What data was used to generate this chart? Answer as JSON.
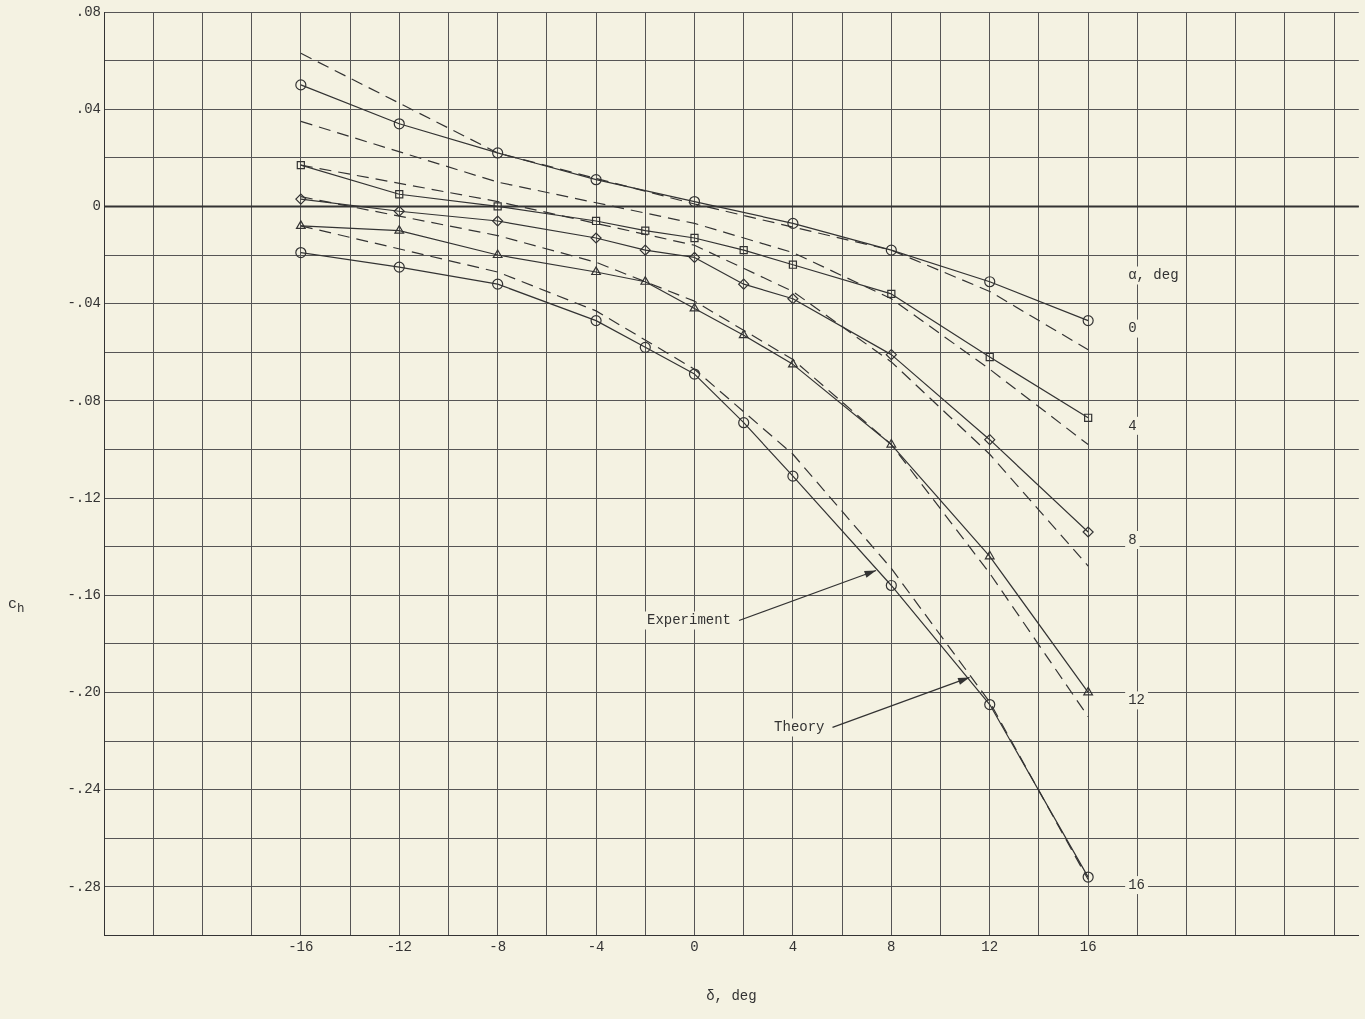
{
  "chart_data": {
    "type": "line",
    "xlabel": "δ, deg",
    "ylabel": "c$_{h}$",
    "legend_title": "α, deg",
    "x": [
      -16,
      -12,
      -8,
      -4,
      -2,
      0,
      2,
      4,
      8,
      12,
      16
    ],
    "series": [
      {
        "name": "0",
        "color": "#333333",
        "marker": "circle",
        "line_style": "solid",
        "x": [
          -16,
          -12,
          -8,
          -4,
          0,
          4,
          8,
          12,
          16
        ],
        "values": [
          0.05,
          0.034,
          0.022,
          0.011,
          0.002,
          -0.007,
          -0.018,
          -0.031,
          -0.047
        ]
      },
      {
        "name": "4",
        "color": "#333333",
        "marker": "square",
        "line_style": "solid",
        "values": [
          0.017,
          0.005,
          0.0,
          -0.006,
          -0.01,
          -0.013,
          -0.018,
          -0.024,
          -0.036,
          -0.062,
          -0.087
        ]
      },
      {
        "name": "8",
        "color": "#333333",
        "marker": "diamond",
        "line_style": "solid",
        "values": [
          0.003,
          -0.002,
          -0.006,
          -0.013,
          -0.018,
          -0.021,
          -0.032,
          -0.038,
          -0.061,
          -0.096,
          -0.134
        ]
      },
      {
        "name": "12",
        "color": "#333333",
        "marker": "triangle",
        "line_style": "solid",
        "values": [
          -0.008,
          -0.01,
          -0.02,
          -0.027,
          -0.031,
          -0.042,
          -0.053,
          -0.065,
          -0.098,
          -0.144,
          -0.2
        ]
      },
      {
        "name": "16",
        "color": "#333333",
        "marker": "circle",
        "line_style": "solid",
        "values": [
          -0.019,
          -0.025,
          -0.032,
          -0.047,
          -0.058,
          -0.069,
          -0.089,
          -0.111,
          -0.156,
          -0.205,
          -0.276
        ]
      },
      {
        "color": "#333333",
        "marker": "none",
        "line_style": "dashed",
        "x": [
          -16,
          -8,
          0,
          8,
          12,
          16
        ],
        "values": [
          0.063,
          0.022,
          0.001,
          -0.018,
          -0.035,
          -0.059
        ]
      },
      {
        "color": "#333333",
        "marker": "none",
        "line_style": "dashed",
        "x": [
          -16,
          -8,
          0,
          4,
          8,
          12,
          16
        ],
        "values": [
          0.035,
          0.01,
          -0.007,
          -0.019,
          -0.038,
          -0.067,
          -0.098
        ]
      },
      {
        "color": "#333333",
        "marker": "none",
        "line_style": "dashed",
        "x": [
          -16,
          -8,
          0,
          4,
          8,
          12,
          16
        ],
        "values": [
          0.017,
          0.002,
          -0.016,
          -0.035,
          -0.064,
          -0.102,
          -0.148
        ]
      },
      {
        "color": "#333333",
        "marker": "none",
        "line_style": "dashed",
        "x": [
          -16,
          -8,
          -4,
          0,
          4,
          8,
          12,
          16
        ],
        "values": [
          0.004,
          -0.012,
          -0.023,
          -0.039,
          -0.063,
          -0.098,
          -0.151,
          -0.21
        ]
      },
      {
        "color": "#333333",
        "marker": "none",
        "line_style": "dashed",
        "x": [
          -16,
          -8,
          -4,
          0,
          4,
          8,
          12,
          16
        ],
        "values": [
          -0.008,
          -0.027,
          -0.043,
          -0.067,
          -0.102,
          -0.149,
          -0.204,
          -0.277
        ]
      }
    ],
    "annotations": [
      {
        "text": "Experiment",
        "x": 7.5,
        "y": -0.149
      },
      {
        "text": "Theory",
        "x": 11.3,
        "y": -0.193
      }
    ],
    "xlim": [
      -24,
      27
    ],
    "xticks": [
      {
        "value": -24,
        "label": null
      },
      {
        "value": -22,
        "label": null
      },
      {
        "value": -20,
        "label": null
      },
      {
        "value": -18,
        "label": null
      },
      -16,
      {
        "value": -14,
        "label": null
      },
      -12,
      {
        "value": -10,
        "label": null
      },
      -8,
      {
        "value": -6,
        "label": null
      },
      -4,
      {
        "value": -2,
        "label": null
      },
      0,
      {
        "value": 2,
        "label": null
      },
      4,
      {
        "value": 6,
        "label": null
      },
      8,
      {
        "value": 10,
        "label": null
      },
      12,
      {
        "value": 14,
        "label": null
      },
      16,
      {
        "value": 18,
        "label": null
      },
      {
        "value": 20,
        "label": null
      },
      {
        "value": 22,
        "label": null
      },
      {
        "value": 24,
        "label": null
      },
      {
        "value": 26,
        "label": null
      }
    ],
    "ylim": [
      -0.3,
      0.08
    ],
    "yticks": [
      {
        "value": -0.3,
        "label": null
      },
      {
        "value": -0.28,
        "label": "-.28"
      },
      {
        "value": -0.26,
        "label": null
      },
      {
        "value": -0.24,
        "label": "-.24"
      },
      {
        "value": -0.22,
        "label": null
      },
      {
        "value": -0.2,
        "label": "-.20"
      },
      {
        "value": -0.18,
        "label": null
      },
      {
        "value": -0.16,
        "label": "-.16"
      },
      {
        "value": -0.14,
        "label": null
      },
      {
        "value": -0.12,
        "label": "-.12"
      },
      {
        "value": -0.1,
        "label": null
      },
      {
        "value": -0.08,
        "label": "-.08"
      },
      {
        "value": -0.06,
        "label": null
      },
      {
        "value": -0.04,
        "label": "-.04"
      },
      {
        "value": -0.02,
        "label": null
      },
      0,
      {
        "value": 0.02,
        "label": null
      },
      {
        "value": 0.04,
        "label": ".04"
      },
      {
        "value": 0.06,
        "label": null
      },
      {
        "value": 0.08,
        "label": ".08"
      }
    ],
    "grid": true,
    "legend": false
  }
}
